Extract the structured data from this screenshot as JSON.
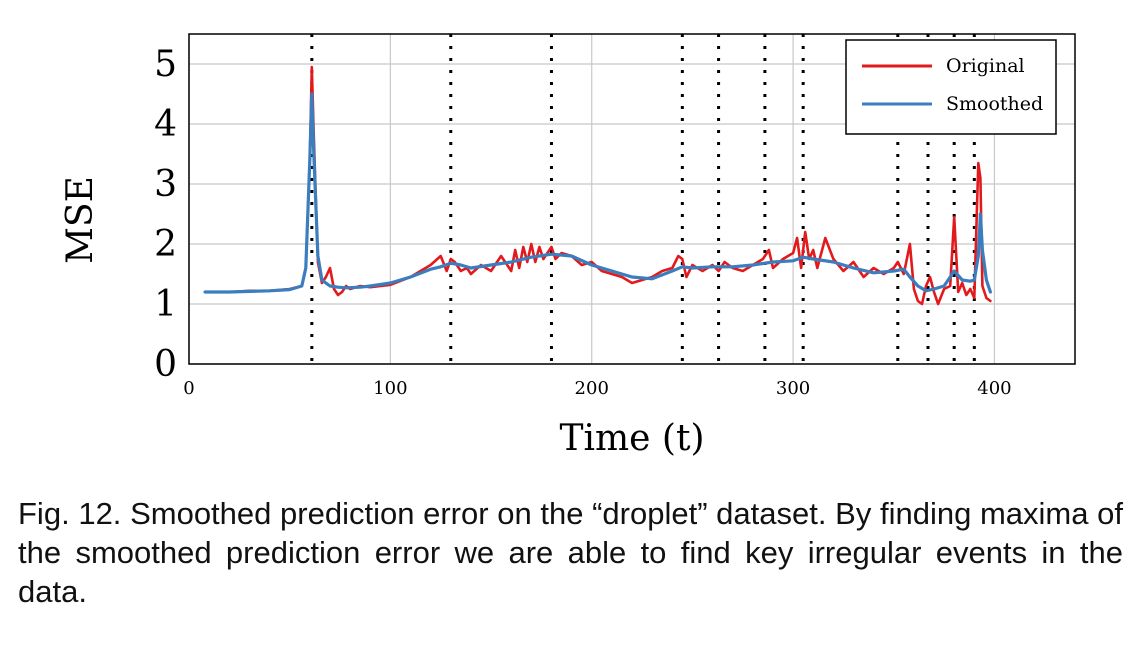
{
  "chart_data": {
    "type": "line",
    "xlabel": "Time (t)",
    "ylabel": "MSE",
    "xlim": [
      0,
      440
    ],
    "ylim": [
      0,
      5.5
    ],
    "xticks": [
      0,
      100,
      200,
      300,
      400
    ],
    "yticks": [
      0,
      1,
      2,
      3,
      4,
      5
    ],
    "grid": true,
    "legend_position": "top-right",
    "event_markers_x": [
      61,
      130,
      180,
      245,
      263,
      286,
      305,
      352,
      367,
      380,
      390
    ],
    "series": [
      {
        "name": "Original",
        "color": "#e31a1c",
        "x": [
          8,
          20,
          30,
          40,
          50,
          56,
          58,
          60,
          61,
          62,
          64,
          66,
          68,
          70,
          72,
          74,
          76,
          78,
          80,
          85,
          90,
          100,
          110,
          120,
          125,
          128,
          130,
          132,
          135,
          138,
          140,
          145,
          150,
          155,
          160,
          162,
          164,
          166,
          168,
          170,
          172,
          174,
          176,
          178,
          180,
          182,
          185,
          190,
          195,
          200,
          205,
          210,
          215,
          220,
          225,
          230,
          235,
          240,
          243,
          245,
          247,
          250,
          255,
          260,
          263,
          266,
          270,
          275,
          280,
          285,
          288,
          290,
          295,
          300,
          302,
          304,
          306,
          308,
          310,
          312,
          316,
          320,
          325,
          330,
          335,
          340,
          345,
          350,
          352,
          355,
          358,
          360,
          362,
          364,
          366,
          368,
          370,
          372,
          375,
          378,
          380,
          382,
          384,
          386,
          388,
          390,
          392,
          393,
          394,
          396,
          398
        ],
        "y": [
          1.2,
          1.2,
          1.22,
          1.22,
          1.25,
          1.3,
          1.6,
          3.4,
          4.95,
          3.8,
          1.7,
          1.35,
          1.45,
          1.6,
          1.25,
          1.15,
          1.2,
          1.3,
          1.25,
          1.3,
          1.28,
          1.32,
          1.45,
          1.65,
          1.8,
          1.55,
          1.75,
          1.7,
          1.55,
          1.6,
          1.5,
          1.65,
          1.55,
          1.8,
          1.55,
          1.9,
          1.6,
          1.95,
          1.7,
          2.0,
          1.7,
          1.95,
          1.75,
          1.85,
          1.95,
          1.75,
          1.85,
          1.8,
          1.65,
          1.7,
          1.55,
          1.5,
          1.45,
          1.35,
          1.4,
          1.45,
          1.55,
          1.6,
          1.8,
          1.75,
          1.45,
          1.65,
          1.55,
          1.65,
          1.55,
          1.7,
          1.6,
          1.55,
          1.65,
          1.75,
          1.9,
          1.6,
          1.75,
          1.85,
          2.1,
          1.6,
          2.2,
          1.75,
          1.9,
          1.6,
          2.1,
          1.75,
          1.55,
          1.7,
          1.45,
          1.6,
          1.5,
          1.6,
          1.7,
          1.5,
          2.0,
          1.25,
          1.05,
          1.0,
          1.3,
          1.45,
          1.2,
          1.0,
          1.25,
          1.3,
          2.45,
          1.2,
          1.35,
          1.15,
          1.25,
          1.1,
          3.35,
          3.1,
          1.3,
          1.1,
          1.05
        ]
      },
      {
        "name": "Smoothed",
        "color": "#3a7ebf",
        "x": [
          8,
          20,
          30,
          40,
          50,
          56,
          58,
          60,
          61,
          62,
          64,
          66,
          68,
          70,
          74,
          78,
          85,
          90,
          100,
          110,
          120,
          125,
          130,
          135,
          140,
          150,
          160,
          170,
          180,
          190,
          200,
          210,
          220,
          230,
          240,
          245,
          250,
          260,
          270,
          280,
          290,
          300,
          305,
          310,
          320,
          330,
          340,
          350,
          355,
          358,
          362,
          366,
          370,
          375,
          380,
          384,
          388,
          390,
          392,
          393,
          394,
          396,
          398
        ],
        "y": [
          1.2,
          1.2,
          1.21,
          1.22,
          1.24,
          1.3,
          1.6,
          3.4,
          4.5,
          3.5,
          1.8,
          1.4,
          1.35,
          1.3,
          1.28,
          1.27,
          1.28,
          1.3,
          1.35,
          1.45,
          1.58,
          1.62,
          1.68,
          1.65,
          1.6,
          1.65,
          1.7,
          1.78,
          1.83,
          1.8,
          1.65,
          1.55,
          1.45,
          1.42,
          1.55,
          1.62,
          1.6,
          1.62,
          1.62,
          1.65,
          1.7,
          1.72,
          1.78,
          1.75,
          1.7,
          1.6,
          1.52,
          1.55,
          1.58,
          1.45,
          1.3,
          1.22,
          1.25,
          1.3,
          1.55,
          1.4,
          1.38,
          1.4,
          1.8,
          2.5,
          1.9,
          1.4,
          1.2
        ]
      }
    ]
  },
  "caption": "Fig. 12. Smoothed prediction error on the “droplet” dataset. By finding maxima of the smoothed prediction error we are able to find key irregular events in the data."
}
